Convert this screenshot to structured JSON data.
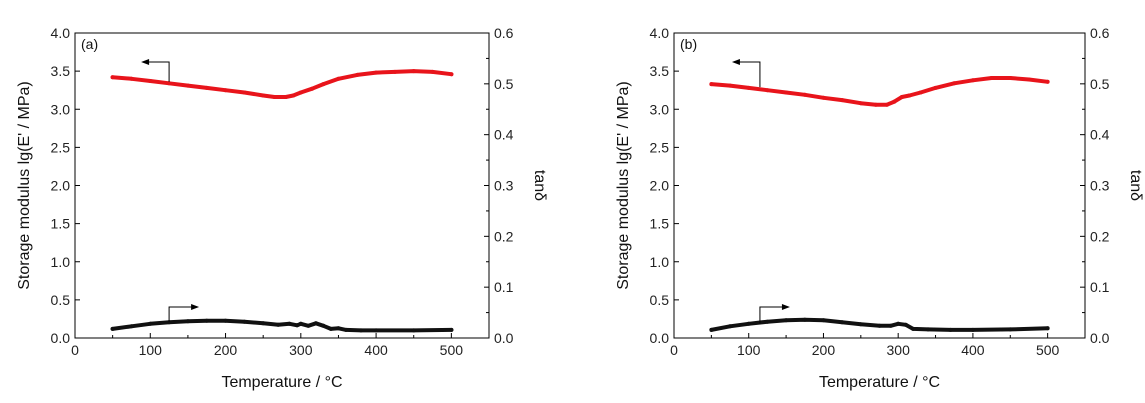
{
  "chart_data": [
    {
      "type": "line",
      "panel_label": "(a)",
      "xlabel": "Temperature / °C",
      "ylabel_left": "Storage modulus lg(E' / MPa)",
      "ylabel_right": "tanδ",
      "xlim": [
        0,
        550
      ],
      "ylim_left": [
        0,
        4.0
      ],
      "ylim_right": [
        0,
        0.6
      ],
      "xticks": [
        0,
        100,
        200,
        300,
        400,
        500
      ],
      "yticks_left": [
        "0.0",
        "0.5",
        "1.0",
        "1.5",
        "2.0",
        "2.5",
        "3.0",
        "3.5",
        "4.0"
      ],
      "yticks_right": [
        "0.0",
        "0.1",
        "0.2",
        "0.3",
        "0.4",
        "0.5",
        "0.6"
      ],
      "series": [
        {
          "axis": "left",
          "color": "#e8141b",
          "x": [
            50,
            75,
            100,
            125,
            150,
            175,
            200,
            225,
            250,
            265,
            280,
            290,
            300,
            315,
            330,
            350,
            375,
            400,
            425,
            450,
            475,
            500
          ],
          "y": [
            3.42,
            3.4,
            3.37,
            3.34,
            3.31,
            3.28,
            3.25,
            3.22,
            3.18,
            3.16,
            3.16,
            3.18,
            3.22,
            3.27,
            3.33,
            3.4,
            3.45,
            3.48,
            3.49,
            3.5,
            3.49,
            3.46
          ]
        },
        {
          "axis": "right",
          "color": "#111111",
          "x": [
            50,
            75,
            100,
            125,
            150,
            175,
            200,
            225,
            250,
            270,
            285,
            295,
            300,
            310,
            320,
            330,
            340,
            350,
            360,
            380,
            400,
            450,
            500
          ],
          "y": [
            0.018,
            0.023,
            0.028,
            0.031,
            0.033,
            0.034,
            0.034,
            0.032,
            0.029,
            0.026,
            0.028,
            0.025,
            0.028,
            0.024,
            0.029,
            0.024,
            0.018,
            0.019,
            0.016,
            0.015,
            0.015,
            0.015,
            0.016
          ]
        }
      ],
      "annotations": [
        {
          "arrow": "left",
          "series_axis": "left"
        },
        {
          "arrow": "right",
          "series_axis": "right"
        }
      ]
    },
    {
      "type": "line",
      "panel_label": "(b)",
      "xlabel": "Temperature / °C",
      "ylabel_left": "Storage modulus lg(E' / MPa)",
      "ylabel_right": "tanδ",
      "xlim": [
        0,
        550
      ],
      "ylim_left": [
        0,
        4.0
      ],
      "ylim_right": [
        0,
        0.6
      ],
      "xticks": [
        0,
        100,
        200,
        300,
        400,
        500
      ],
      "yticks_left": [
        "0.0",
        "0.5",
        "1.0",
        "1.5",
        "2.0",
        "2.5",
        "3.0",
        "3.5",
        "4.0"
      ],
      "yticks_right": [
        "0.0",
        "0.1",
        "0.2",
        "0.3",
        "0.4",
        "0.5",
        "0.6"
      ],
      "series": [
        {
          "axis": "left",
          "color": "#e8141b",
          "x": [
            50,
            75,
            100,
            125,
            150,
            175,
            200,
            225,
            250,
            270,
            285,
            295,
            305,
            315,
            330,
            350,
            375,
            400,
            425,
            450,
            475,
            500
          ],
          "y": [
            3.33,
            3.31,
            3.28,
            3.25,
            3.22,
            3.19,
            3.15,
            3.12,
            3.08,
            3.06,
            3.06,
            3.1,
            3.16,
            3.18,
            3.22,
            3.28,
            3.34,
            3.38,
            3.41,
            3.41,
            3.39,
            3.36
          ]
        },
        {
          "axis": "right",
          "color": "#111111",
          "x": [
            50,
            75,
            100,
            125,
            150,
            175,
            200,
            225,
            250,
            275,
            290,
            300,
            310,
            320,
            340,
            370,
            400,
            450,
            500
          ],
          "y": [
            0.016,
            0.023,
            0.028,
            0.032,
            0.035,
            0.036,
            0.035,
            0.031,
            0.027,
            0.024,
            0.024,
            0.028,
            0.026,
            0.018,
            0.017,
            0.016,
            0.016,
            0.017,
            0.019
          ]
        }
      ],
      "annotations": [
        {
          "arrow": "left",
          "series_axis": "left"
        },
        {
          "arrow": "right",
          "series_axis": "right"
        }
      ]
    }
  ]
}
